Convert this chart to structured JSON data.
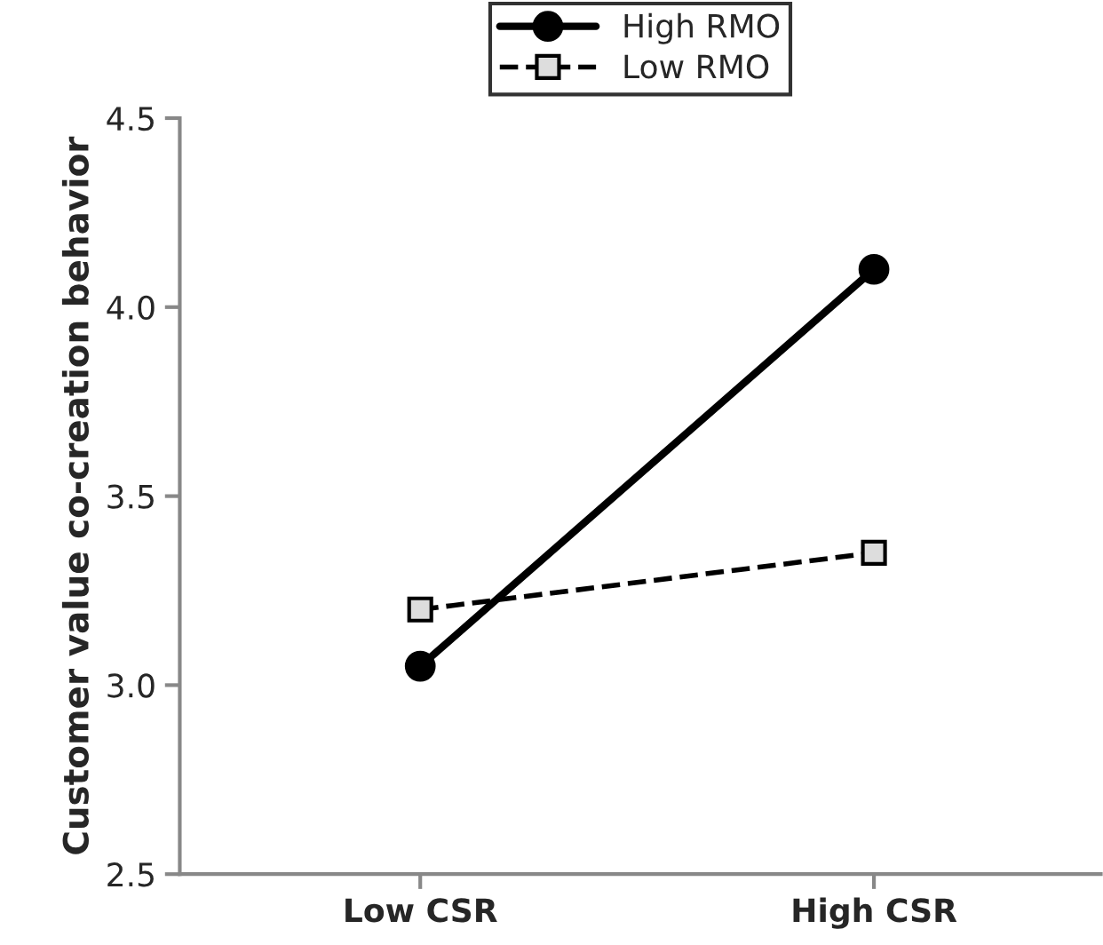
{
  "chart_data": {
    "type": "line",
    "ylabel": "Customer value co-creation behavior",
    "categories": [
      "Low CSR",
      "High CSR"
    ],
    "series": [
      {
        "name": "High RMO",
        "color": "#000000",
        "values": [
          3.05,
          4.1
        ],
        "marker": "circle",
        "line_style": "solid"
      },
      {
        "name": "Low RMO",
        "color": "#000000",
        "values": [
          3.2,
          3.35
        ],
        "marker": "square",
        "line_style": "dashed"
      }
    ],
    "ylim": [
      2.5,
      4.5
    ],
    "yticks": [
      {
        "value": 2.5,
        "label": "2.5"
      },
      {
        "value": 3.0,
        "label": "3.0"
      },
      {
        "value": 3.5,
        "label": "3.5"
      },
      {
        "value": 4.0,
        "label": "4.0"
      },
      {
        "value": 4.5,
        "label": "4.5"
      }
    ],
    "grid": false,
    "legend": "top"
  }
}
